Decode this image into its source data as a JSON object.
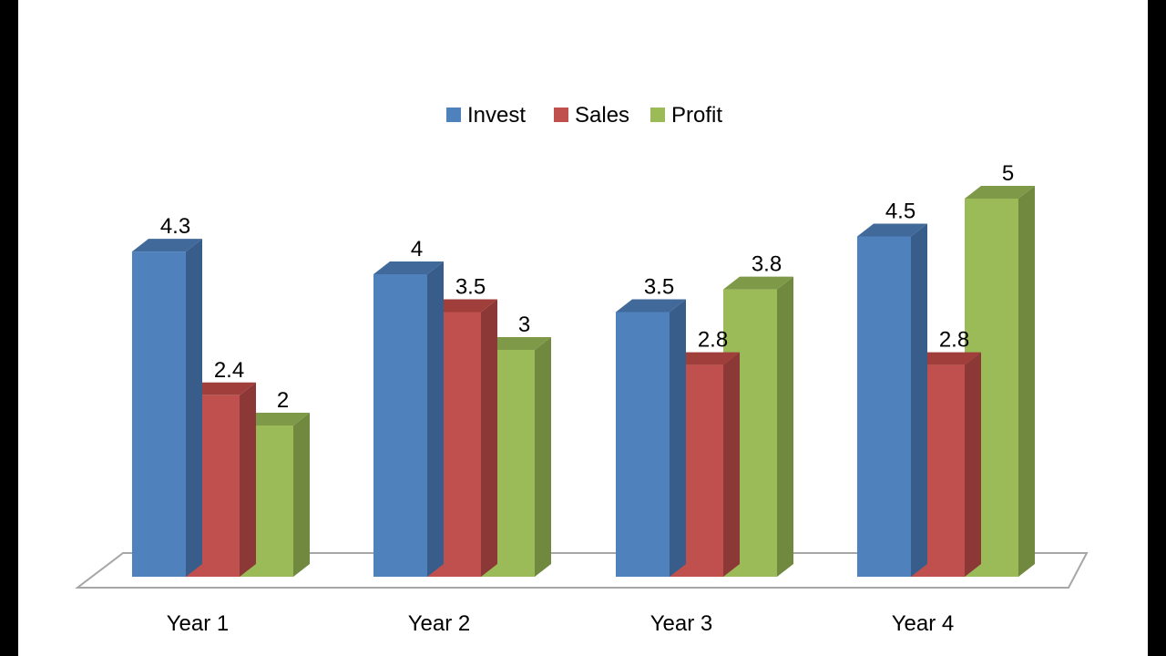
{
  "chart_data": {
    "type": "bar",
    "style": "3d-clustered-column",
    "categories": [
      "Year 1",
      "Year 2",
      "Year 3",
      "Year 4"
    ],
    "series": [
      {
        "name": "Invest",
        "values": [
          4.3,
          4,
          3.5,
          4.5
        ],
        "color": "#4F81BD"
      },
      {
        "name": "Sales",
        "values": [
          2.4,
          3.5,
          2.8,
          2.8
        ],
        "color": "#C0504D"
      },
      {
        "name": "Profit",
        "values": [
          2,
          3,
          3.8,
          5
        ],
        "color": "#9BBB59"
      }
    ],
    "data_labels": [
      [
        "4.3",
        "2.4",
        "2"
      ],
      [
        "4",
        "3.5",
        "3"
      ],
      [
        "3.5",
        "2.8",
        "3.8"
      ],
      [
        "4.5",
        "2.8",
        "5"
      ]
    ],
    "ylim": [
      0,
      5
    ],
    "grid": false,
    "legend": "top-center",
    "title": "",
    "xlabel": "",
    "ylabel": ""
  }
}
